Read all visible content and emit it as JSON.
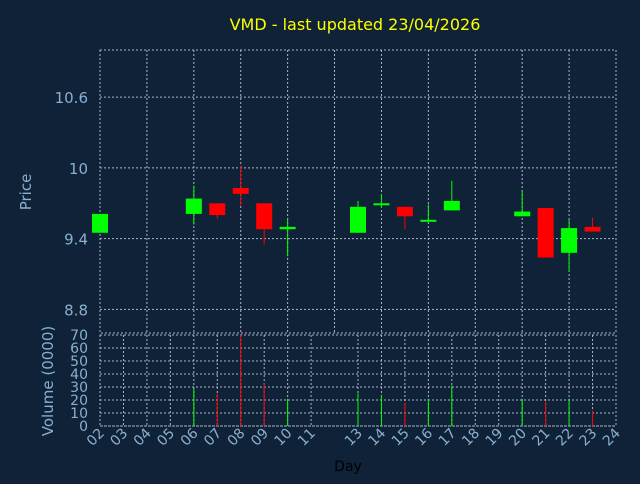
{
  "title": "VMD - last updated 23/04/2026",
  "colors": {
    "background": "#0f2238",
    "title": "#ffff00",
    "axis_text": "#8ab0d0",
    "grid": "#a9b7c7",
    "up": "#00ff00",
    "down": "#ff0000",
    "axis_label": "#000000"
  },
  "chart_data": [
    {
      "type": "candlestick",
      "ylabel": "Price",
      "ylim": [
        8.6,
        11.0
      ],
      "yticks": [
        "8.8",
        "9.4",
        "10",
        "10.6"
      ],
      "grid": true,
      "candles": [
        {
          "day": "02",
          "open": 9.45,
          "close": 9.61,
          "high": 9.61,
          "low": 9.45
        },
        {
          "day": "06",
          "open": 9.61,
          "close": 9.74,
          "high": 9.85,
          "low": 9.52
        },
        {
          "day": "07",
          "open": 9.7,
          "close": 9.6,
          "high": 9.7,
          "low": 9.57
        },
        {
          "day": "08",
          "open": 9.83,
          "close": 9.78,
          "high": 10.02,
          "low": 9.68
        },
        {
          "day": "09",
          "open": 9.7,
          "close": 9.48,
          "high": 9.7,
          "low": 9.35
        },
        {
          "day": "10",
          "open": 9.48,
          "close": 9.5,
          "high": 9.57,
          "low": 9.25
        },
        {
          "day": "13",
          "open": 9.45,
          "close": 9.67,
          "high": 9.72,
          "low": 9.45
        },
        {
          "day": "14",
          "open": 9.69,
          "close": 9.7,
          "high": 9.78,
          "low": 9.66
        },
        {
          "day": "15",
          "open": 9.67,
          "close": 9.59,
          "high": 9.67,
          "low": 9.48
        },
        {
          "day": "16",
          "open": 9.55,
          "close": 9.56,
          "high": 9.69,
          "low": 9.55
        },
        {
          "day": "17",
          "open": 9.64,
          "close": 9.72,
          "high": 9.89,
          "low": 9.64
        },
        {
          "day": "20",
          "open": 9.59,
          "close": 9.63,
          "high": 9.81,
          "low": 9.59
        },
        {
          "day": "21",
          "open": 9.66,
          "close": 9.24,
          "high": 9.66,
          "low": 9.24
        },
        {
          "day": "22",
          "open": 9.28,
          "close": 9.49,
          "high": 9.56,
          "low": 9.12
        },
        {
          "day": "23",
          "open": 9.5,
          "close": 9.46,
          "high": 9.58,
          "low": 9.46
        }
      ]
    },
    {
      "type": "bar",
      "ylabel": "Volume (0000)",
      "xlabel": "Day",
      "ylim": [
        0,
        70
      ],
      "yticks": [
        "0",
        "10",
        "20",
        "30",
        "40",
        "50",
        "60",
        "70"
      ],
      "grid": true,
      "categories": [
        "02",
        "03",
        "04",
        "05",
        "06",
        "07",
        "08",
        "09",
        "10",
        "11",
        "13",
        "14",
        "15",
        "16",
        "17",
        "18",
        "19",
        "20",
        "21",
        "22",
        "23",
        "24"
      ],
      "volumes": [
        {
          "day": "06",
          "value": 29,
          "dir": "up"
        },
        {
          "day": "07",
          "value": 25,
          "dir": "down"
        },
        {
          "day": "08",
          "value": 70,
          "dir": "down"
        },
        {
          "day": "09",
          "value": 33,
          "dir": "down"
        },
        {
          "day": "10",
          "value": 21,
          "dir": "up"
        },
        {
          "day": "13",
          "value": 25,
          "dir": "up"
        },
        {
          "day": "14",
          "value": 24,
          "dir": "up"
        },
        {
          "day": "15",
          "value": 18,
          "dir": "down"
        },
        {
          "day": "16",
          "value": 21,
          "dir": "up"
        },
        {
          "day": "17",
          "value": 31,
          "dir": "up"
        },
        {
          "day": "20",
          "value": 21,
          "dir": "up"
        },
        {
          "day": "21",
          "value": 19,
          "dir": "down"
        },
        {
          "day": "22",
          "value": 21,
          "dir": "up"
        },
        {
          "day": "23",
          "value": 12,
          "dir": "down"
        }
      ]
    }
  ]
}
